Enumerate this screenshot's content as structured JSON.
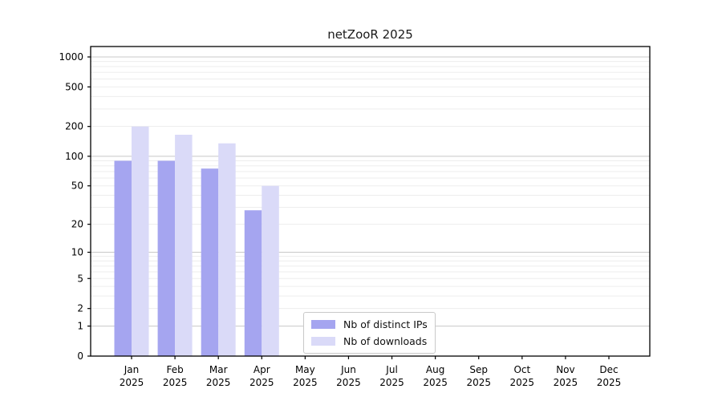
{
  "figure": {
    "title": "netZooR 2025"
  },
  "chart_data": {
    "type": "bar",
    "title": "netZooR 2025",
    "year_label": "2025",
    "categories": [
      "Jan",
      "Feb",
      "Mar",
      "Apr",
      "May",
      "Jun",
      "Jul",
      "Aug",
      "Sep",
      "Oct",
      "Nov",
      "Dec"
    ],
    "series": [
      {
        "name": "Nb of distinct IPs",
        "color": "#a5a5f0",
        "values": [
          90,
          90,
          75,
          28,
          0,
          0,
          0,
          0,
          0,
          0,
          0,
          0
        ]
      },
      {
        "name": "Nb of downloads",
        "color": "#dadaf8",
        "values": [
          200,
          165,
          135,
          50,
          0,
          0,
          0,
          0,
          0,
          0,
          0,
          0
        ]
      }
    ],
    "y_ticks": [
      0,
      1,
      2,
      5,
      10,
      20,
      50,
      100,
      200,
      500,
      1000
    ],
    "y_scale": "log10(value+1)",
    "ylim": [
      0,
      1000
    ],
    "xlabel": "",
    "ylabel": "",
    "grid": "horizontal log gridlines, major at powers of 10",
    "legend_position": "inside bottom-center",
    "colors": {
      "major_grid": "#c8c8c8",
      "minor_grid": "#ededed",
      "axis": "#000000",
      "text": "#000000"
    }
  }
}
